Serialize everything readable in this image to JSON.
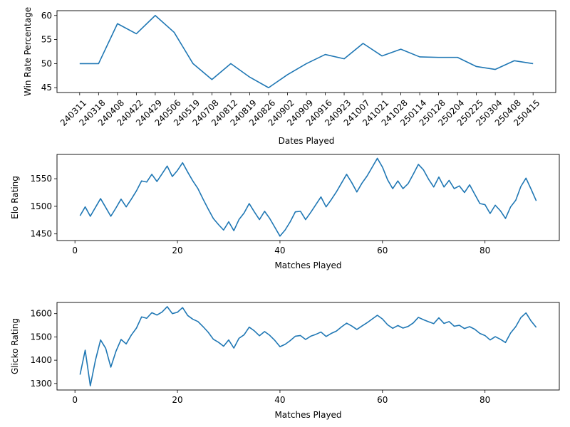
{
  "figure": {
    "background": "#ffffff",
    "line_color": "#1f77b4"
  },
  "chart_data": [
    {
      "type": "line",
      "title": "",
      "xlabel": "Dates Played",
      "ylabel": "Win Rate Percentage",
      "x_tick_labels": [
        "240311",
        "240318",
        "240408",
        "240422",
        "240429",
        "240506",
        "240519",
        "240708",
        "240812",
        "240819",
        "240826",
        "240902",
        "240909",
        "240916",
        "240923",
        "241007",
        "241021",
        "241028",
        "250114",
        "250128",
        "250204",
        "250225",
        "250304",
        "250408",
        "250415"
      ],
      "ylim": [
        44,
        61
      ],
      "yticks": [
        45,
        50,
        55,
        60
      ],
      "grid": false,
      "legend": "none",
      "series": [
        {
          "values": [
            50.0,
            50.0,
            58.3,
            56.2,
            60.0,
            56.5,
            50.0,
            46.7,
            50.0,
            47.2,
            45.0,
            47.7,
            50.0,
            51.9,
            51.0,
            54.2,
            51.6,
            53.0,
            51.4,
            51.3,
            51.3,
            49.4,
            48.8,
            50.6,
            50.0
          ]
        }
      ]
    },
    {
      "type": "line",
      "title": "",
      "xlabel": "Matches Played",
      "ylabel": "Elo Rating",
      "x": [
        1,
        2,
        3,
        4,
        5,
        6,
        7,
        8,
        9,
        10,
        11,
        12,
        13,
        14,
        15,
        16,
        17,
        18,
        19,
        20,
        21,
        22,
        23,
        24,
        25,
        26,
        27,
        28,
        29,
        30,
        31,
        32,
        33,
        34,
        35,
        36,
        37,
        38,
        39,
        40,
        41,
        42,
        43,
        44,
        45,
        46,
        47,
        48,
        49,
        50,
        51,
        52,
        53,
        54,
        55,
        56,
        57,
        58,
        59,
        60,
        61,
        62,
        63,
        64,
        65,
        66,
        67,
        68,
        69,
        70,
        71,
        72,
        73,
        74,
        75,
        76,
        77,
        78,
        79,
        80,
        81,
        82,
        83,
        84,
        85,
        86,
        87,
        88,
        89,
        90
      ],
      "xlim": [
        -3.5,
        94.5
      ],
      "xticks": [
        0,
        20,
        40,
        60,
        80
      ],
      "ylim": [
        1438,
        1594
      ],
      "yticks": [
        1450,
        1500,
        1550
      ],
      "grid": false,
      "legend": "none",
      "series": [
        {
          "values": [
            1483,
            1499,
            1482,
            1498,
            1514,
            1498,
            1482,
            1497,
            1513,
            1499,
            1513,
            1528,
            1546,
            1544,
            1558,
            1545,
            1559,
            1573,
            1554,
            1565,
            1579,
            1562,
            1546,
            1532,
            1513,
            1495,
            1478,
            1467,
            1457,
            1472,
            1456,
            1476,
            1488,
            1505,
            1490,
            1476,
            1491,
            1478,
            1462,
            1446,
            1457,
            1472,
            1490,
            1491,
            1476,
            1489,
            1503,
            1517,
            1499,
            1512,
            1526,
            1542,
            1558,
            1543,
            1526,
            1542,
            1555,
            1571,
            1587,
            1571,
            1548,
            1532,
            1546,
            1532,
            1541,
            1558,
            1576,
            1566,
            1549,
            1535,
            1553,
            1535,
            1547,
            1532,
            1537,
            1525,
            1539,
            1522,
            1505,
            1503,
            1487,
            1502,
            1492,
            1478,
            1499,
            1511,
            1536,
            1551,
            1531,
            1510
          ]
        }
      ]
    },
    {
      "type": "line",
      "title": "",
      "xlabel": "Matches Played",
      "ylabel": "Glicko Rating",
      "x": [
        1,
        2,
        3,
        4,
        5,
        6,
        7,
        8,
        9,
        10,
        11,
        12,
        13,
        14,
        15,
        16,
        17,
        18,
        19,
        20,
        21,
        22,
        23,
        24,
        25,
        26,
        27,
        28,
        29,
        30,
        31,
        32,
        33,
        34,
        35,
        36,
        37,
        38,
        39,
        40,
        41,
        42,
        43,
        44,
        45,
        46,
        47,
        48,
        49,
        50,
        51,
        52,
        53,
        54,
        55,
        56,
        57,
        58,
        59,
        60,
        61,
        62,
        63,
        64,
        65,
        66,
        67,
        68,
        69,
        70,
        71,
        72,
        73,
        74,
        75,
        76,
        77,
        78,
        79,
        80,
        81,
        82,
        83,
        84,
        85,
        86,
        87,
        88,
        89,
        90
      ],
      "xlim": [
        -3.5,
        94.5
      ],
      "xticks": [
        0,
        20,
        40,
        60,
        80
      ],
      "ylim": [
        1272,
        1648
      ],
      "yticks": [
        1300,
        1400,
        1500,
        1600
      ],
      "grid": false,
      "legend": "none",
      "series": [
        {
          "values": [
            1338,
            1443,
            1290,
            1400,
            1487,
            1451,
            1370,
            1438,
            1489,
            1470,
            1508,
            1538,
            1586,
            1580,
            1604,
            1594,
            1607,
            1630,
            1600,
            1606,
            1626,
            1592,
            1576,
            1566,
            1544,
            1520,
            1490,
            1477,
            1460,
            1487,
            1452,
            1494,
            1509,
            1542,
            1526,
            1505,
            1523,
            1507,
            1485,
            1458,
            1468,
            1484,
            1503,
            1506,
            1489,
            1503,
            1511,
            1521,
            1502,
            1515,
            1525,
            1543,
            1559,
            1547,
            1532,
            1547,
            1561,
            1577,
            1593,
            1577,
            1552,
            1537,
            1549,
            1538,
            1545,
            1560,
            1584,
            1574,
            1565,
            1557,
            1582,
            1558,
            1566,
            1546,
            1550,
            1536,
            1544,
            1533,
            1515,
            1506,
            1487,
            1501,
            1490,
            1476,
            1517,
            1544,
            1583,
            1603,
            1568,
            1541
          ]
        }
      ]
    }
  ]
}
